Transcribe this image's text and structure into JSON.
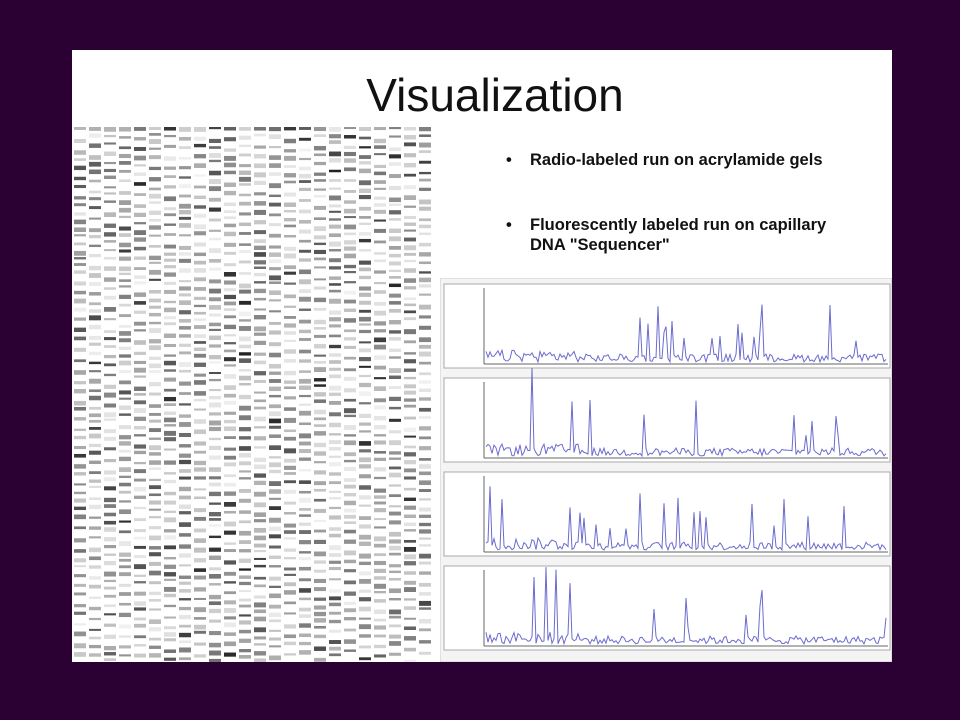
{
  "slide": {
    "title": "Visualization",
    "bullets": [
      "Radio-labeled run on acrylamide gels",
      "Fluorescently labeled run on capillary DNA \"Sequencer\""
    ]
  }
}
